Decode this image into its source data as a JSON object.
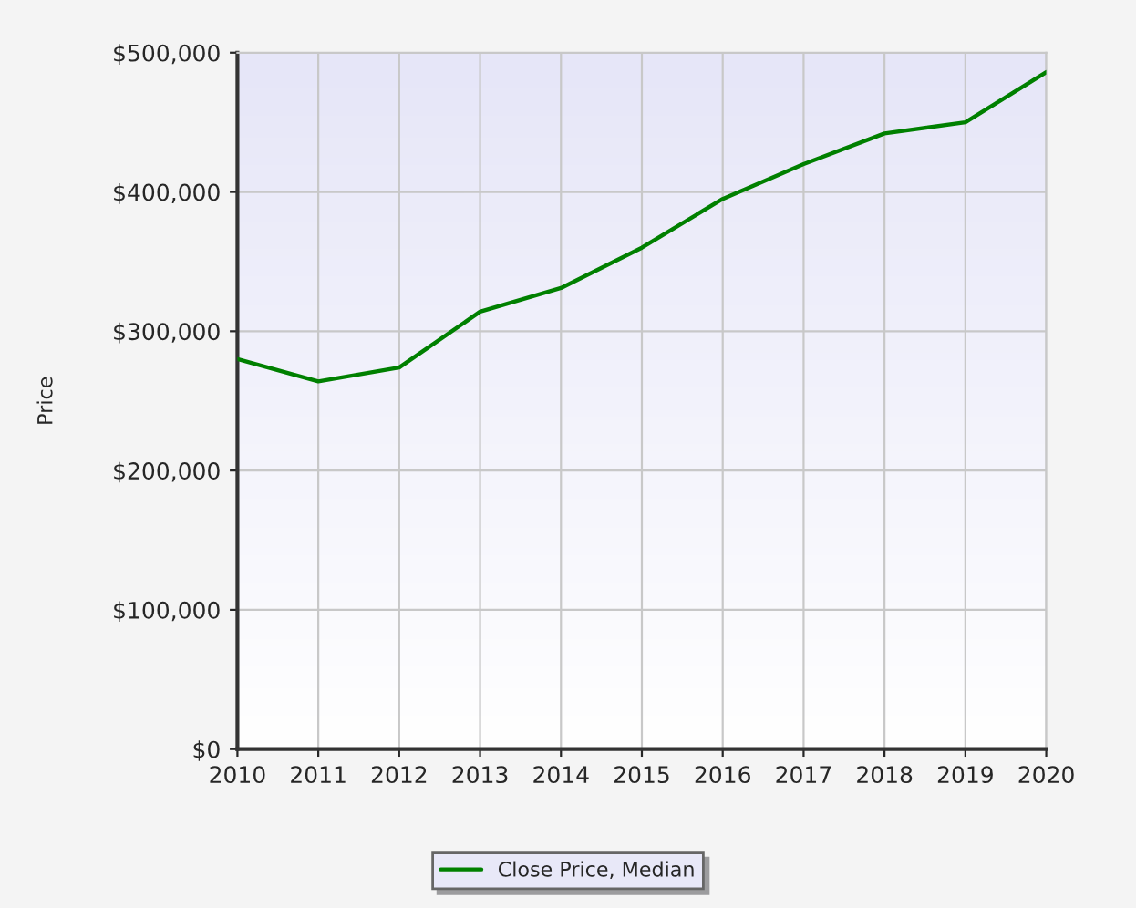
{
  "chart_data": {
    "type": "line",
    "ylabel": "Price",
    "x": [
      2010,
      2011,
      2012,
      2013,
      2014,
      2015,
      2016,
      2017,
      2018,
      2019,
      2020
    ],
    "series": [
      {
        "name": "Close Price, Median",
        "color": "#008000",
        "values": [
          280000,
          264000,
          274000,
          314000,
          331000,
          360000,
          395000,
          420000,
          442000,
          450000,
          486000
        ]
      }
    ],
    "xlim": [
      2010,
      2020
    ],
    "xticks": [
      2010,
      2011,
      2012,
      2013,
      2014,
      2015,
      2016,
      2017,
      2018,
      2019,
      2020
    ],
    "ylim": [
      0,
      500000
    ],
    "yticks": [
      {
        "value": 0,
        "label": "$0"
      },
      {
        "value": 100000,
        "label": "$100,000"
      },
      {
        "value": 200000,
        "label": "$200,000"
      },
      {
        "value": 300000,
        "label": "$300,000"
      },
      {
        "value": 400000,
        "label": "$400,000"
      },
      {
        "value": 500000,
        "label": "$500,000"
      }
    ],
    "grid": true,
    "legend": "bottom",
    "marker": "none",
    "line_style": "solid"
  }
}
